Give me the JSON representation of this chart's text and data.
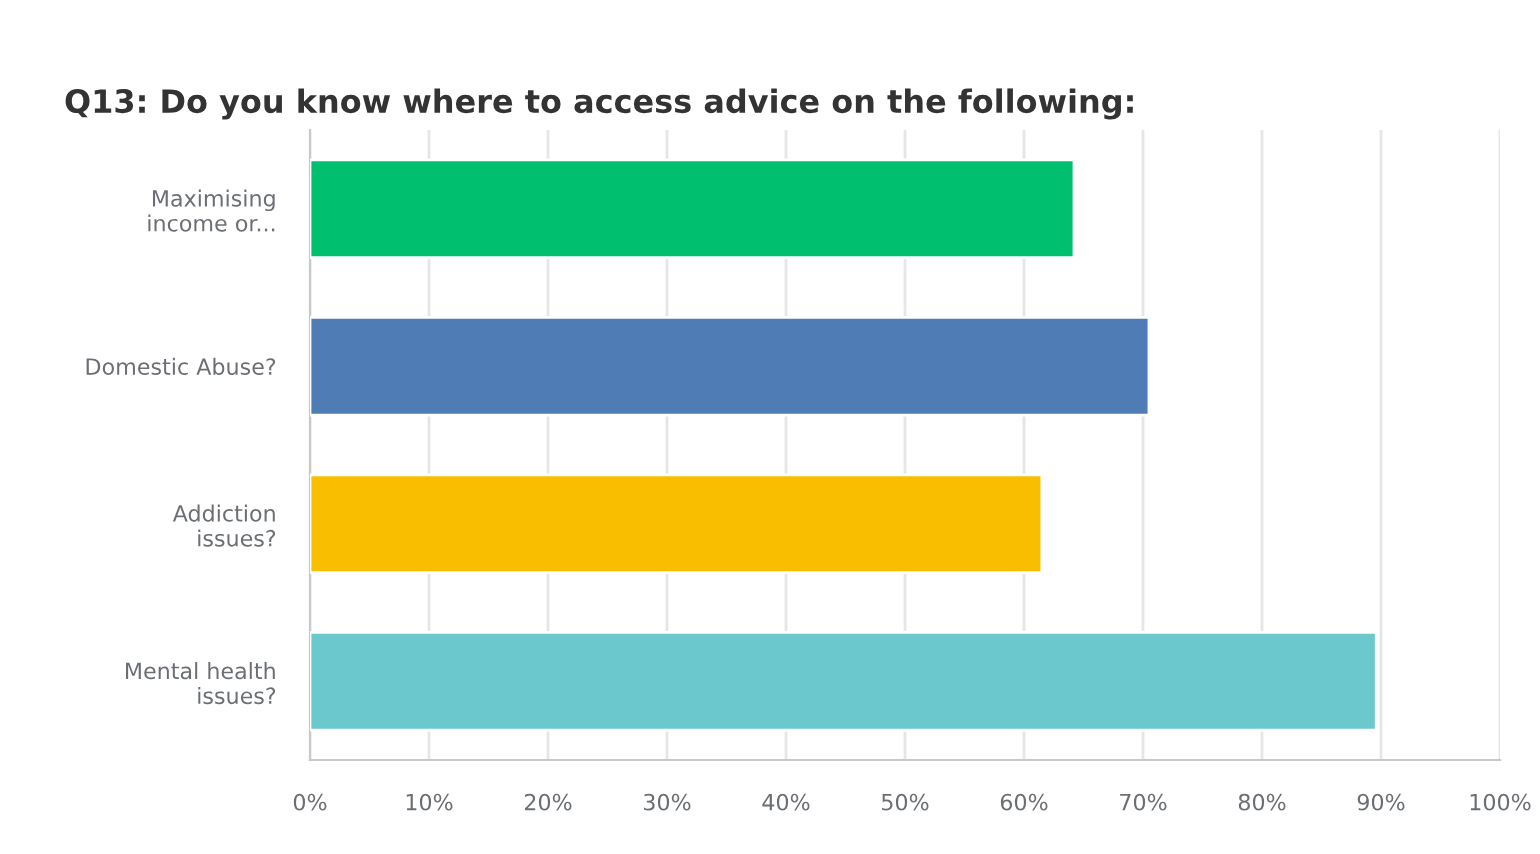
{
  "chart_data": {
    "type": "bar",
    "orientation": "horizontal",
    "title": "Q13: Do you know where to access advice on the following:",
    "categories": [
      "Maximising\nincome or...",
      "Domestic Abuse?",
      "Addiction\nissues?",
      "Mental health\nissues?"
    ],
    "values": [
      64.2,
      70.5,
      61.5,
      89.6
    ],
    "colors": [
      "#00bf6f",
      "#507cb6",
      "#f9be00",
      "#6bc8cd"
    ],
    "xlim": [
      0,
      100
    ],
    "xticks": [
      {
        "value": 0,
        "label": "0%"
      },
      {
        "value": 10,
        "label": "10%"
      },
      {
        "value": 20,
        "label": "20%"
      },
      {
        "value": 30,
        "label": "30%"
      },
      {
        "value": 40,
        "label": "40%"
      },
      {
        "value": 50,
        "label": "50%"
      },
      {
        "value": 60,
        "label": "60%"
      },
      {
        "value": 70,
        "label": "70%"
      },
      {
        "value": 80,
        "label": "80%"
      },
      {
        "value": 90,
        "label": "90%"
      },
      {
        "value": 100,
        "label": "100%"
      }
    ],
    "grid": "x"
  }
}
